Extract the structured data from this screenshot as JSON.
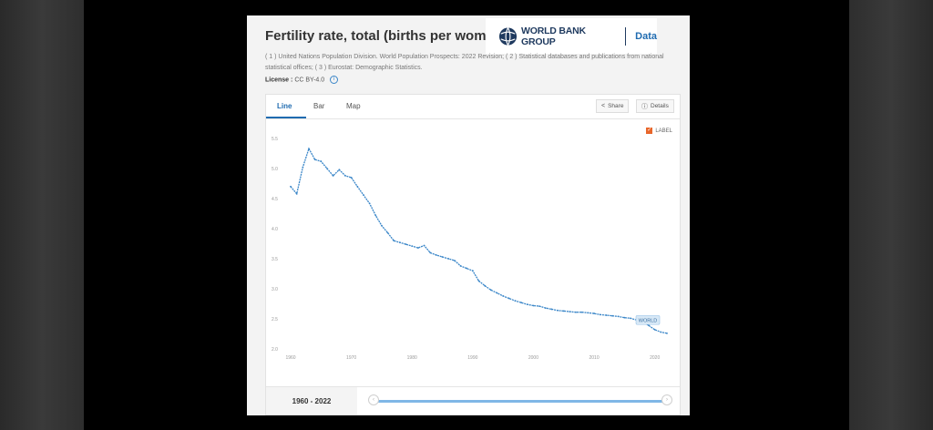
{
  "header": {
    "title": "Fertility rate, total (births per woman)",
    "logo_text": "WORLD BANK GROUP",
    "logo_data": "Data",
    "sources": "( 1 ) United Nations Population Division. World Population Prospects: 2022 Revision; ( 2 ) Statistical databases and publications from national statistical offices; ( 3 ) Eurostat: Demographic Statistics.",
    "license_label": "License :",
    "license_value": "CC BY-4.0"
  },
  "tabs": [
    {
      "label": "Line"
    },
    {
      "label": "Bar"
    },
    {
      "label": "Map"
    }
  ],
  "toolbar": {
    "share_label": "Share",
    "details_label": "Details"
  },
  "legend": {
    "label_toggle": "LABEL"
  },
  "footer": {
    "range": "1960 - 2022"
  },
  "colors": {
    "line": "#3a86c8",
    "accent": "#1f6bb0",
    "checkbox": "#e8662a"
  },
  "chart_data": {
    "type": "line",
    "title": "",
    "xlabel": "",
    "ylabel": "",
    "xlim": [
      1960,
      2022
    ],
    "ylim": [
      2.0,
      5.5
    ],
    "xticks": [
      "1960",
      "1970",
      "1980",
      "1990",
      "2000",
      "2010",
      "2020"
    ],
    "yticks": [
      "2.0",
      "2.5",
      "3.0",
      "3.5",
      "4.0",
      "4.5",
      "5.0",
      "5.5"
    ],
    "grid": false,
    "series": [
      {
        "name": "WORLD",
        "x": [
          1960,
          1961,
          1962,
          1963,
          1964,
          1965,
          1966,
          1967,
          1968,
          1969,
          1970,
          1971,
          1972,
          1973,
          1974,
          1975,
          1976,
          1977,
          1978,
          1979,
          1980,
          1981,
          1982,
          1983,
          1984,
          1985,
          1986,
          1987,
          1988,
          1989,
          1990,
          1991,
          1992,
          1993,
          1994,
          1995,
          1996,
          1997,
          1998,
          1999,
          2000,
          2001,
          2002,
          2003,
          2004,
          2005,
          2006,
          2007,
          2008,
          2009,
          2010,
          2011,
          2012,
          2013,
          2014,
          2015,
          2016,
          2017,
          2018,
          2019,
          2020,
          2021,
          2022
        ],
        "values": [
          4.7,
          4.58,
          5.02,
          5.33,
          5.15,
          5.12,
          5.0,
          4.88,
          4.98,
          4.88,
          4.85,
          4.7,
          4.56,
          4.42,
          4.22,
          4.05,
          3.93,
          3.8,
          3.77,
          3.74,
          3.71,
          3.68,
          3.72,
          3.6,
          3.56,
          3.53,
          3.5,
          3.47,
          3.38,
          3.34,
          3.3,
          3.13,
          3.05,
          2.98,
          2.93,
          2.88,
          2.84,
          2.8,
          2.77,
          2.74,
          2.72,
          2.71,
          2.68,
          2.66,
          2.64,
          2.63,
          2.62,
          2.61,
          2.61,
          2.6,
          2.59,
          2.57,
          2.56,
          2.55,
          2.54,
          2.52,
          2.51,
          2.48,
          2.45,
          2.39,
          2.32,
          2.28,
          2.26
        ]
      }
    ]
  }
}
